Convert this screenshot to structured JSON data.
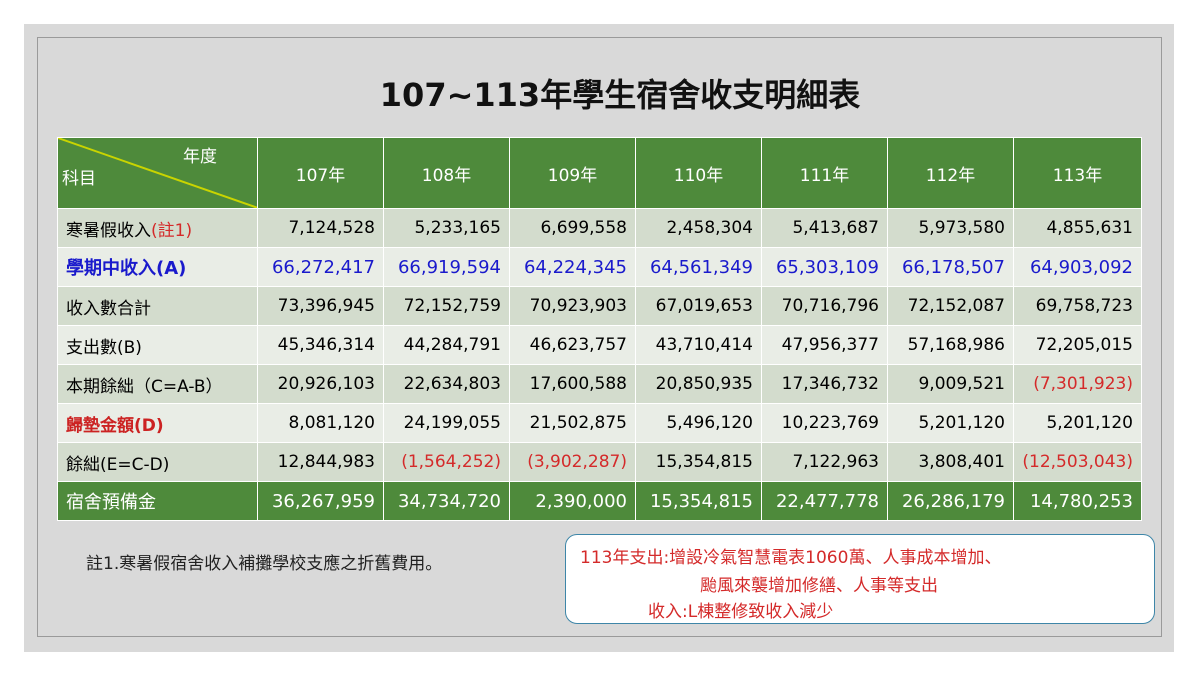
{
  "title": "107~113年學生宿舍收支明細表",
  "table": {
    "corner_top": "年度",
    "corner_bottom": "科目",
    "years": [
      "107年",
      "108年",
      "109年",
      "110年",
      "111年",
      "112年",
      "113年"
    ],
    "rows": [
      {
        "label": "寒暑假收入",
        "label_note": "(註1)",
        "values": [
          "7,124,528",
          "5,233,165",
          "6,699,558",
          "2,458,304",
          "5,413,687",
          "5,973,580",
          "4,855,631"
        ]
      },
      {
        "label": "學期中收入(A)",
        "values": [
          "66,272,417",
          "66,919,594",
          "64,224,345",
          "64,561,349",
          "65,303,109",
          "66,178,507",
          "64,903,092"
        ]
      },
      {
        "label": "收入數合計",
        "values": [
          "73,396,945",
          "72,152,759",
          "70,923,903",
          "67,019,653",
          "70,716,796",
          "72,152,087",
          "69,758,723"
        ]
      },
      {
        "label": "支出數(B)",
        "values": [
          "45,346,314",
          "44,284,791",
          "46,623,757",
          "43,710,414",
          "47,956,377",
          "57,168,986",
          "72,205,015"
        ]
      },
      {
        "label": "本期餘絀（C=A-B）",
        "values": [
          "20,926,103",
          "22,634,803",
          "17,600,588",
          "20,850,935",
          "17,346,732",
          "9,009,521",
          "(7,301,923)"
        ]
      },
      {
        "label": "歸墊金額(D)",
        "values": [
          "8,081,120",
          "24,199,055",
          "21,502,875",
          "5,496,120",
          "10,223,769",
          "5,201,120",
          "5,201,120"
        ]
      },
      {
        "label": "餘絀(E=C-D)",
        "values": [
          "12,844,983",
          "(1,564,252)",
          "(3,902,287)",
          "15,354,815",
          "7,122,963",
          "3,808,401",
          "(12,503,043)"
        ]
      },
      {
        "label": "宿舍預備金",
        "values": [
          "36,267,959",
          "34,734,720",
          "2,390,000",
          "15,354,815",
          "22,477,778",
          "26,286,179",
          "14,780,253"
        ]
      }
    ]
  },
  "footnote": "註1.寒暑假宿舍收入補攤學校支應之折舊費用。",
  "note_box": {
    "line1": "113年支出:增設冷氣智慧電表1060萬、人事成本增加、",
    "line2": "颱風來襲增加修繕、人事等支出",
    "line3": "收入:L棟整修致收入減少"
  },
  "colors": {
    "header_green": "#4e8a3b",
    "row_dark": "#d3dccd",
    "row_light": "#e9ede6",
    "blue_text": "#1a1acc",
    "red_text": "#d42a2a"
  }
}
